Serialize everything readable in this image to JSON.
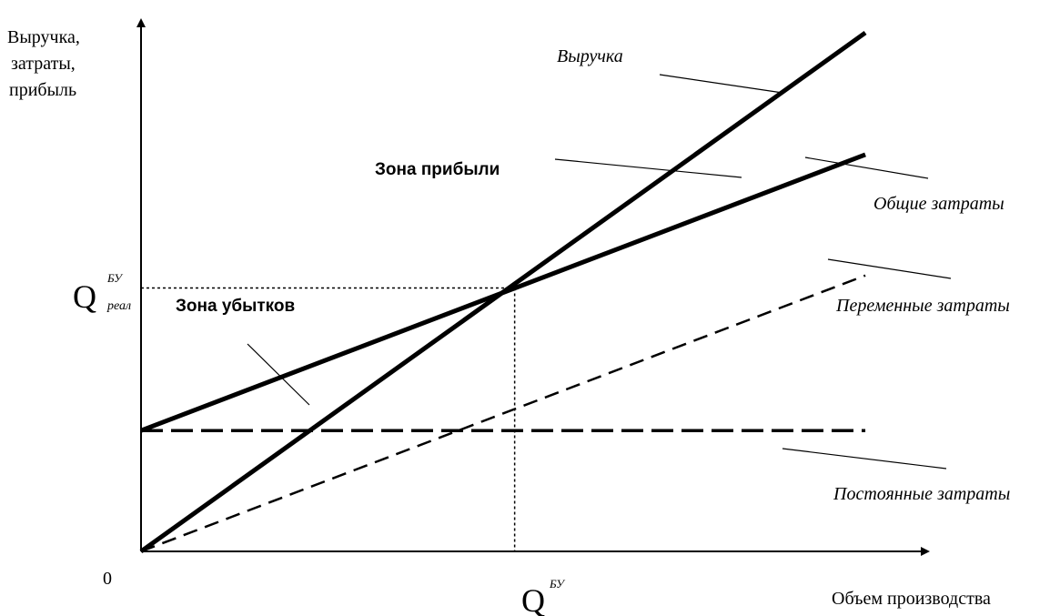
{
  "chart_data": {
    "type": "line",
    "ylabel": [
      "Выручка,",
      "затраты,",
      "прибыль"
    ],
    "xlabel": "Объем производства",
    "origin_label": "0",
    "xlim": [
      0,
      1
    ],
    "ylim": [
      0,
      1
    ],
    "break_even": {
      "x": 0.472,
      "y": 0.508,
      "x_label": {
        "base": "Q",
        "sup": "БУ"
      },
      "y_label": {
        "base": "Q",
        "sup": "БУ",
        "sub": "реал"
      }
    },
    "series": [
      {
        "name": "Выручка",
        "style": "solid-bold",
        "x": [
          0,
          0.915
        ],
        "y": [
          0,
          1.0
        ]
      },
      {
        "name": "Общие затраты",
        "style": "solid-bold",
        "x": [
          0,
          0.915
        ],
        "y": [
          0.233,
          0.765
        ]
      },
      {
        "name": "Переменные затраты",
        "style": "dashed",
        "x": [
          0,
          0.915
        ],
        "y": [
          0,
          0.532
        ]
      },
      {
        "name": "Постоянные затраты",
        "style": "dashed-bold",
        "x": [
          0,
          0.915
        ],
        "y": [
          0.233,
          0.233
        ]
      }
    ],
    "annotations": [
      {
        "text": "Выручка",
        "style": "italic"
      },
      {
        "text": "Общие затраты",
        "style": "italic"
      },
      {
        "text": "Переменные затраты",
        "style": "italic"
      },
      {
        "text": "Постоянные затраты",
        "style": "italic"
      },
      {
        "text": "Зона прибыли",
        "style": "bold"
      },
      {
        "text": "Зона убытков",
        "style": "bold"
      }
    ]
  }
}
